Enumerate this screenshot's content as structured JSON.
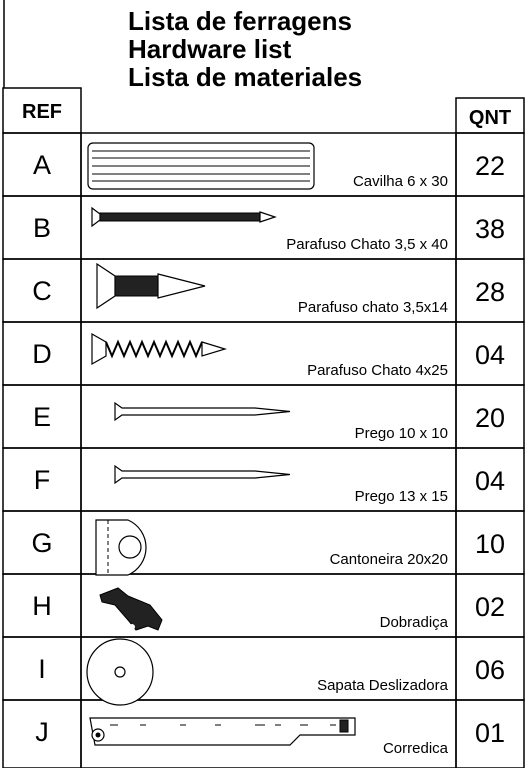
{
  "header": {
    "title_lines": [
      "Lista de ferragens",
      "Hardware list",
      "Lista de materiales"
    ],
    "ref_label": "REF",
    "qnt_label": "QNT"
  },
  "table": {
    "rows": [
      [
        "A",
        "Cavilha 6 x 30",
        "22"
      ],
      [
        "B",
        "Parafuso Chato 3,5 x 40",
        "38"
      ],
      [
        "C",
        "Parafuso chato 3,5x14",
        "28"
      ],
      [
        "D",
        "Parafuso Chato 4x25",
        "04"
      ],
      [
        "E",
        "Prego 10 x 10",
        "20"
      ],
      [
        "F",
        "Prego 13 x 15",
        "04"
      ],
      [
        "G",
        "Cantoneira 20x20",
        "10"
      ],
      [
        "H",
        "Dobradiça",
        "02"
      ],
      [
        "I",
        "Sapata Deslizadora",
        "06"
      ],
      [
        "J",
        "Corredica",
        "01"
      ]
    ]
  }
}
